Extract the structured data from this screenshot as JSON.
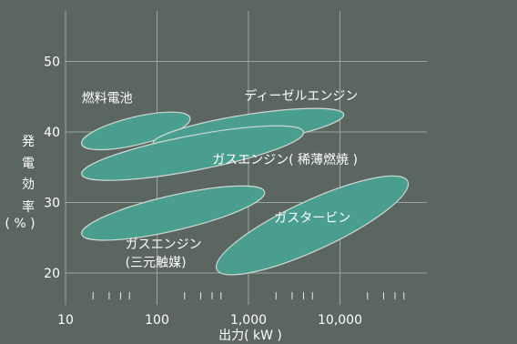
{
  "chart_data": {
    "type": "area",
    "title": "",
    "xlabel": "出力( kW )",
    "ylabel": [
      "発",
      "電",
      "効",
      "率",
      "( % )"
    ],
    "x_scale": "log",
    "xlim": [
      10,
      100000
    ],
    "ylim": [
      15,
      55
    ],
    "x_ticks": [
      {
        "value": 10,
        "label": "10"
      },
      {
        "value": 100,
        "label": "100"
      },
      {
        "value": 1000,
        "label": "1,000"
      },
      {
        "value": 10000,
        "label": "10,000"
      }
    ],
    "y_ticks": [
      {
        "value": 20,
        "label": "20"
      },
      {
        "value": 30,
        "label": "30"
      },
      {
        "value": 40,
        "label": "40"
      },
      {
        "value": 50,
        "label": "50"
      }
    ],
    "grid": true,
    "fill_color": "#4a9e8f",
    "background_color": "#5b6660",
    "regions": [
      {
        "name": "燃料電池",
        "label_lines": [
          "燃料電池"
        ],
        "x_range": [
          15,
          230
        ],
        "y_range": [
          38.3,
          42
        ],
        "label_anchor": {
          "x": 15,
          "y": 44.2
        }
      },
      {
        "name": "ディーゼルエンジン",
        "label_lines": [
          "ディーゼルエンジン"
        ],
        "x_range": [
          90,
          11000
        ],
        "y_range": [
          38.3,
          42.5
        ],
        "label_anchor": {
          "x": 900,
          "y": 44.5
        }
      },
      {
        "name": "ガスエンジン( 稀薄燃焼 )",
        "label_lines": [
          "ガスエンジン( 稀薄燃焼 )"
        ],
        "x_range": [
          15,
          4000
        ],
        "y_range": [
          34,
          40
        ],
        "label_anchor": {
          "x": 2500,
          "y": 35.5
        }
      },
      {
        "name": "ガスエンジン(三元触媒)",
        "label_lines": [
          "ガスエンジン",
          "(三元触媒)"
        ],
        "x_range": [
          15,
          1500
        ],
        "y_range": [
          25.5,
          31.5
        ],
        "label_anchor": {
          "x": 45,
          "y": 23.5
        }
      },
      {
        "name": "ガスタービン",
        "label_lines": [
          "ガスタービン"
        ],
        "x_range": [
          450,
          55000
        ],
        "y_range": [
          20.5,
          33
        ],
        "label_anchor": {
          "x": 5000,
          "y": 27.2
        }
      }
    ]
  }
}
